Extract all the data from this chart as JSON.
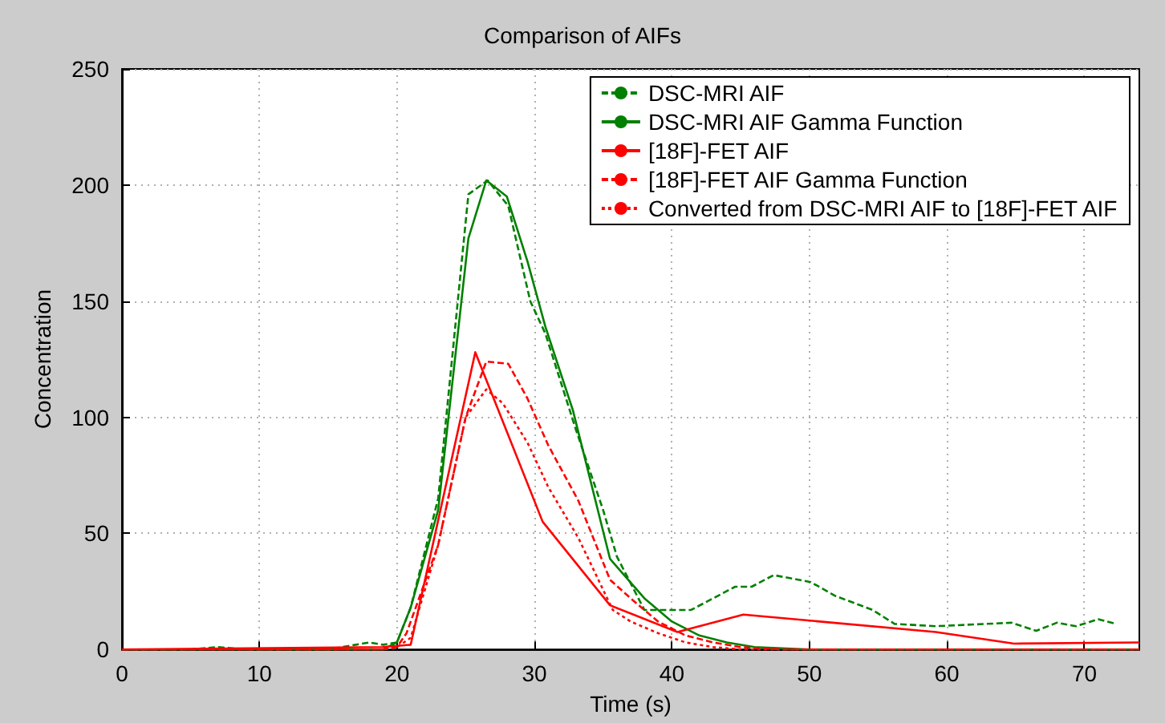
{
  "chart_data": {
    "type": "line",
    "title": "Comparison of AIFs",
    "xlabel": "Time (s)",
    "ylabel": "Concentration",
    "xlim": [
      0,
      74
    ],
    "xticks": [
      0,
      10,
      20,
      30,
      40,
      50,
      60,
      70
    ],
    "ylim": [
      0,
      250
    ],
    "yticks": [
      0,
      50,
      100,
      150,
      200,
      250
    ],
    "grid": true,
    "legend": "top right",
    "marker": "none",
    "series": [
      {
        "name": "DSC-MRI AIF",
        "color": "#008000",
        "line_style": "dashed",
        "x": [
          0,
          5,
          7,
          9,
          15,
          17,
          18,
          19,
          20,
          21,
          23,
          25.2,
          26.6,
          28.1,
          29.7,
          30.8,
          33,
          35,
          36,
          38,
          41.4,
          44.6,
          45.8,
          47.4,
          50.1,
          51.9,
          54.6,
          56.2,
          59.2,
          64.7,
          66.5,
          68,
          69.4,
          71,
          72.3
        ],
        "values": [
          0,
          0,
          1,
          0,
          0,
          2,
          3,
          2,
          3,
          18,
          65,
          196,
          202,
          191,
          150,
          136,
          95,
          60,
          40,
          17,
          17,
          27,
          27,
          32,
          29,
          23,
          17,
          11,
          10,
          11.5,
          8,
          11.5,
          10,
          13,
          11
        ]
      },
      {
        "name": "DSC-MRI AIF Gamma Function",
        "color": "#008000",
        "line_style": "solid",
        "x": [
          0,
          19,
          20,
          21,
          23,
          25.2,
          26.5,
          28,
          29.5,
          30.8,
          32.8,
          35.5,
          38,
          40,
          42,
          44,
          46,
          50,
          74
        ],
        "values": [
          0,
          0,
          3,
          18,
          60,
          177,
          202,
          195,
          167,
          139,
          103,
          39,
          22,
          12,
          6,
          3,
          1,
          0,
          0
        ]
      },
      {
        "name": "[18F]-FET AIF",
        "color": "#ff0000",
        "line_style": "solid",
        "x": [
          0,
          19,
          21,
          25.7,
          30.6,
          35.5,
          40.4,
          45.2,
          59.2,
          64.9,
          74
        ],
        "values": [
          0,
          1,
          2,
          128,
          55,
          19,
          7.5,
          15,
          7.5,
          2.5,
          3
        ]
      },
      {
        "name": "[18F]-FET AIF Gamma Function",
        "color": "#ff0000",
        "line_style": "dashed",
        "x": [
          0,
          19,
          20,
          20.7,
          23,
          25,
          26.5,
          28.1,
          29.5,
          31,
          33.2,
          35.5,
          37,
          39,
          41,
          43,
          45,
          48,
          74
        ],
        "values": [
          0,
          0,
          1,
          7,
          45,
          100,
          124,
          123,
          108,
          88,
          64,
          30,
          22,
          12,
          6,
          3,
          1,
          0,
          0
        ]
      },
      {
        "name": "Converted from DSC-MRI AIF to [18F]-FET AIF",
        "color": "#ff0000",
        "line_style": "dotted",
        "x": [
          0,
          19,
          20,
          21,
          23,
          25,
          26.5,
          27.7,
          29.5,
          31,
          33.2,
          35.7,
          37,
          39,
          41,
          43,
          45,
          74
        ],
        "values": [
          0,
          0,
          1,
          5,
          45,
          100,
          112,
          106,
          89,
          70,
          48,
          17,
          12,
          7,
          3,
          1,
          0,
          0
        ]
      }
    ]
  }
}
